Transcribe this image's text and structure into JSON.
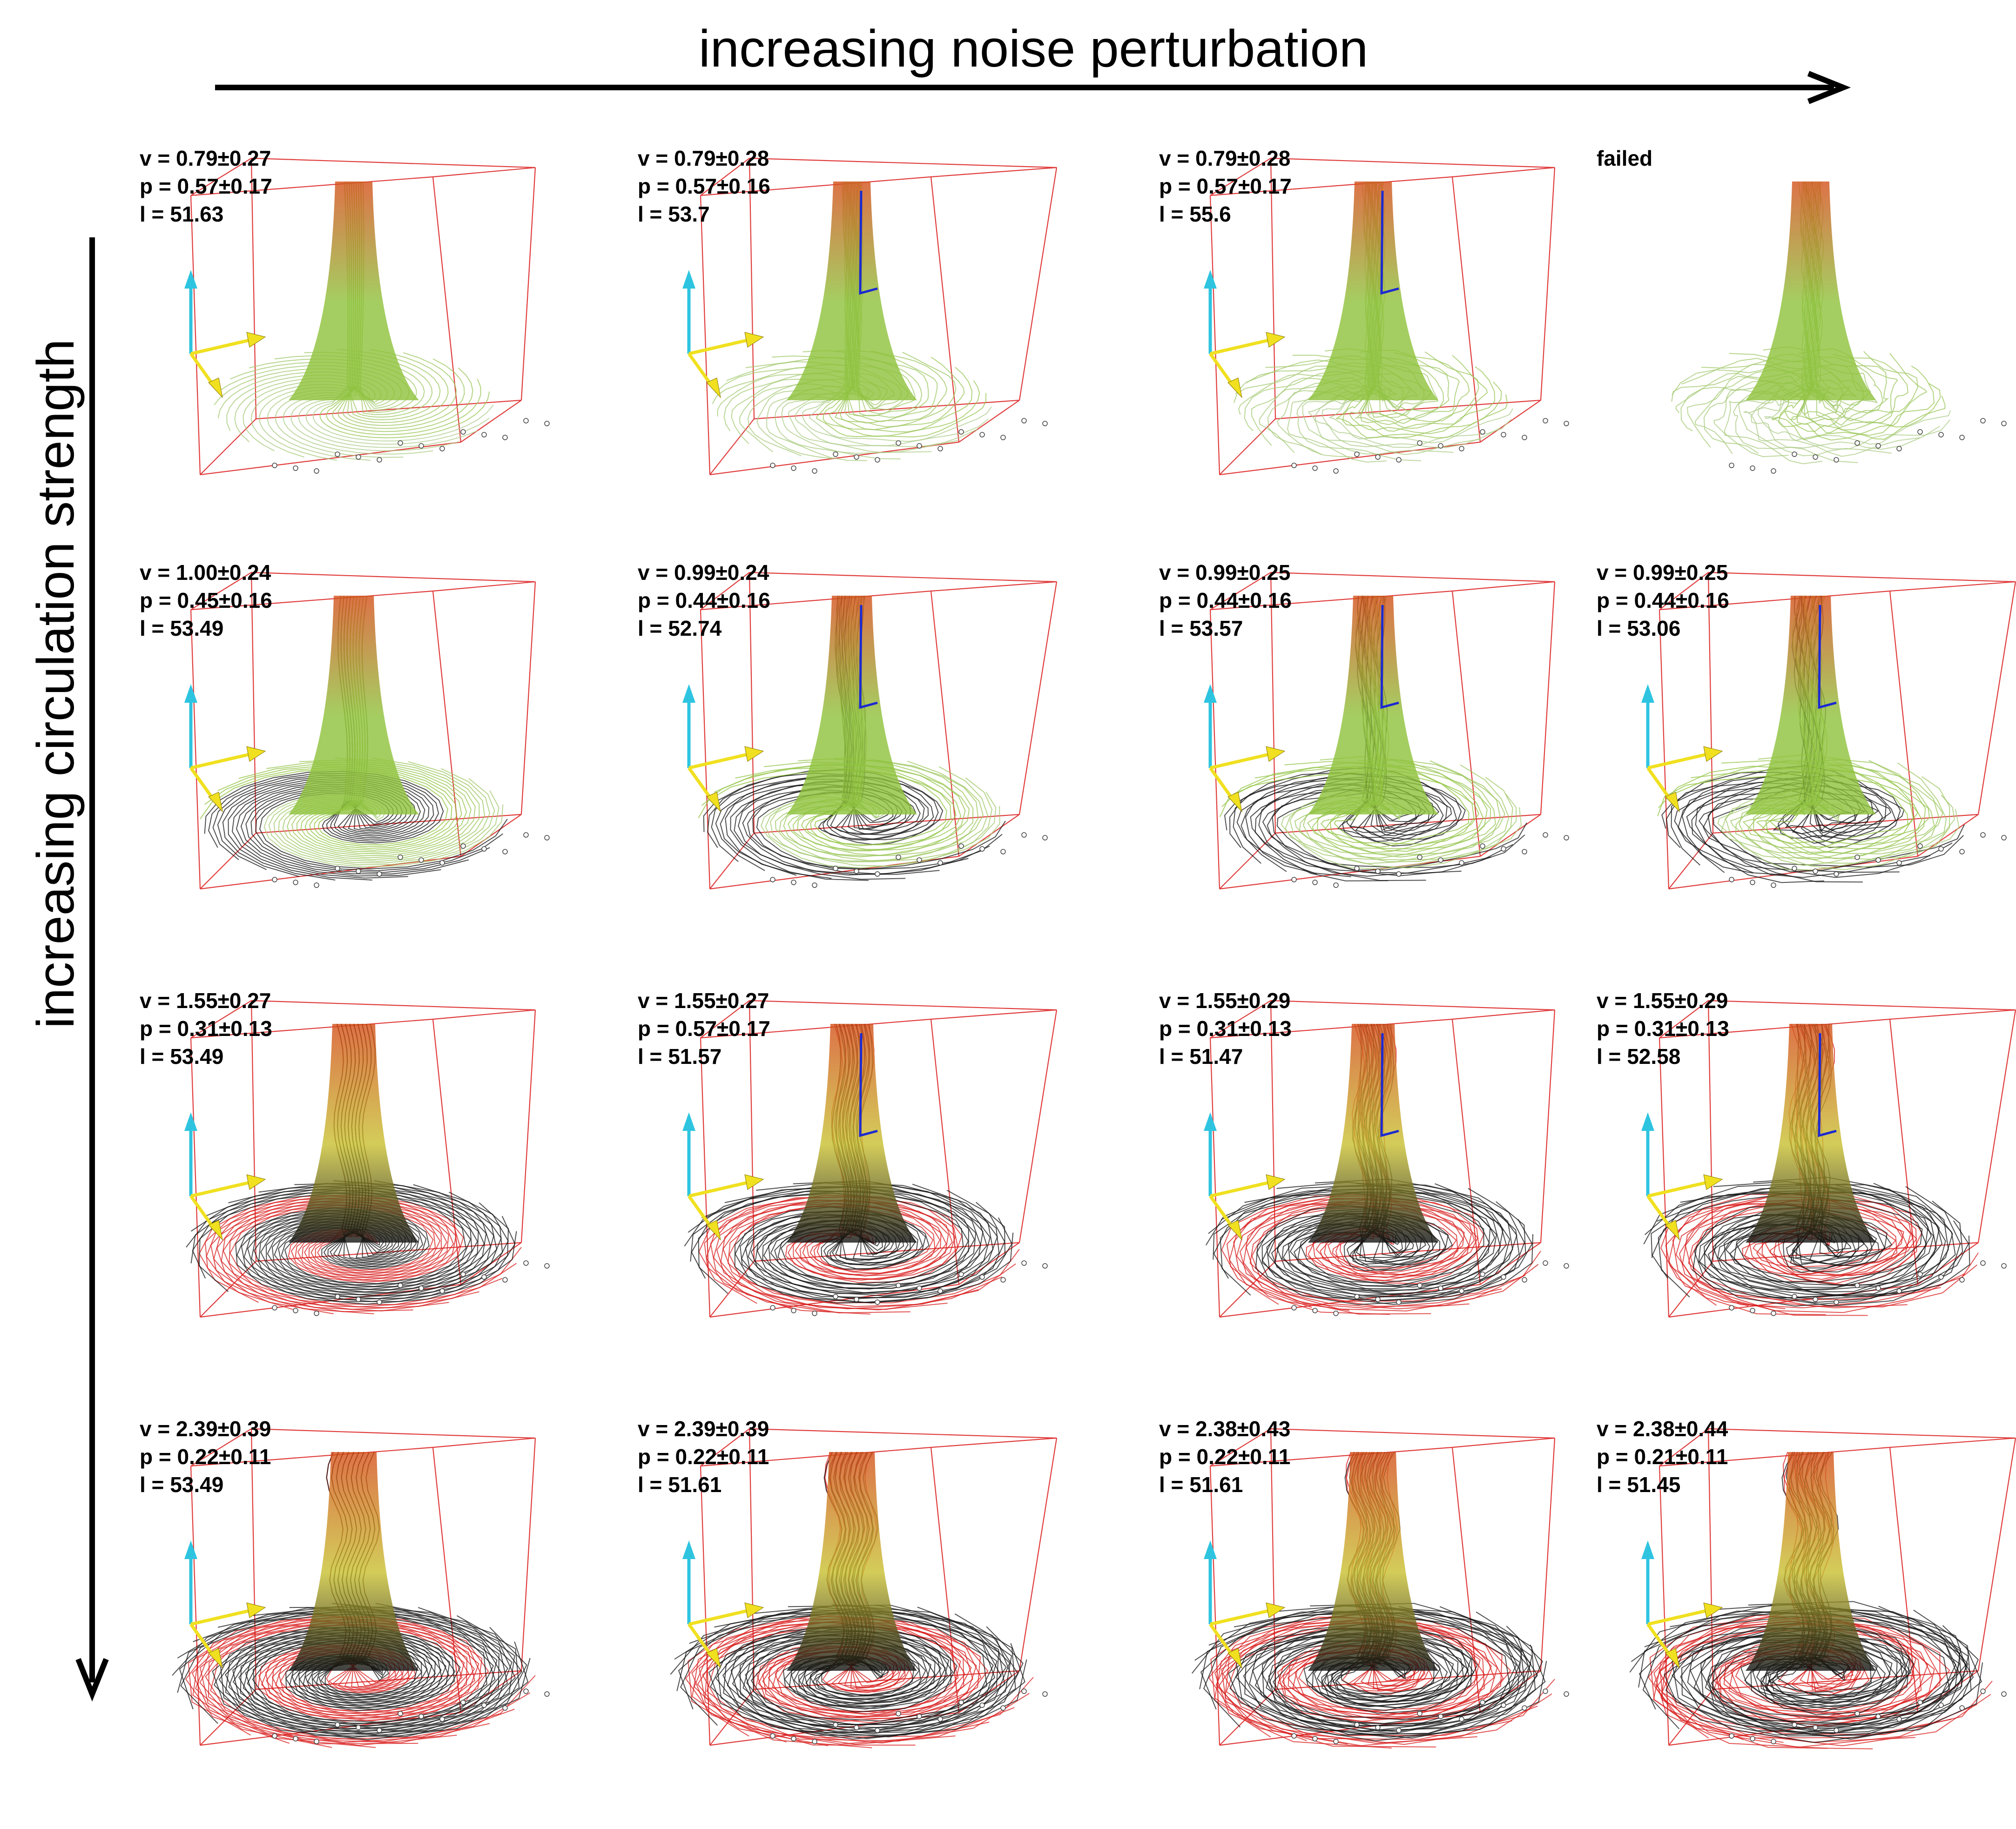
{
  "axes": {
    "horizontal_label": "increasing noise perturbation",
    "vertical_label": "increasing circulation strength"
  },
  "colors": {
    "box": "#e03a3a",
    "axis_vertical": "#2ec4e0",
    "axis_horizontal": "#f0e020",
    "gradient_top": "#d4501a",
    "gradient_mid": "#8ec23a",
    "gradient_low": "#bcd0b0",
    "core_red": "#d81a1a",
    "dark": "#111111",
    "tracker": "#1c2ad0"
  },
  "panels": [
    {
      "row": 0,
      "col": 0,
      "status": "",
      "v": "v = 0.79±0.27",
      "p": "p = 0.57±0.17",
      "l": "l = 51.63",
      "circulation": 0,
      "noise": 0,
      "tracker": false
    },
    {
      "row": 0,
      "col": 1,
      "status": "",
      "v": "v = 0.79±0.28",
      "p": "p = 0.57±0.16",
      "l": "l = 53.7",
      "circulation": 0,
      "noise": 1,
      "tracker": true
    },
    {
      "row": 0,
      "col": 2,
      "status": "",
      "v": "v = 0.79±0.28",
      "p": "p = 0.57±0.17",
      "l": "l = 55.6",
      "circulation": 0,
      "noise": 2,
      "tracker": true
    },
    {
      "row": 0,
      "col": 3,
      "status": "failed",
      "v": "",
      "p": "",
      "l": "",
      "circulation": 0,
      "noise": 3,
      "tracker": false
    },
    {
      "row": 1,
      "col": 0,
      "status": "",
      "v": "v = 1.00±0.24",
      "p": "p = 0.45±0.16",
      "l": "l = 53.49",
      "circulation": 1,
      "noise": 0,
      "tracker": false
    },
    {
      "row": 1,
      "col": 1,
      "status": "",
      "v": "v = 0.99±0.24",
      "p": "p = 0.44±0.16",
      "l": "l = 52.74",
      "circulation": 1,
      "noise": 1,
      "tracker": true
    },
    {
      "row": 1,
      "col": 2,
      "status": "",
      "v": "v = 0.99±0.25",
      "p": "p = 0.44±0.16",
      "l": "l = 53.57",
      "circulation": 1,
      "noise": 2,
      "tracker": true
    },
    {
      "row": 1,
      "col": 3,
      "status": "",
      "v": "v = 0.99±0.25",
      "p": "p = 0.44±0.16",
      "l": "l = 53.06",
      "circulation": 1,
      "noise": 3,
      "tracker": true
    },
    {
      "row": 2,
      "col": 0,
      "status": "",
      "v": "v = 1.55±0.27",
      "p": "p = 0.31±0.13",
      "l": "l = 53.49",
      "circulation": 2,
      "noise": 0,
      "tracker": false
    },
    {
      "row": 2,
      "col": 1,
      "status": "",
      "v": "v = 1.55±0.27",
      "p": "p = 0.57±0.17",
      "l": "l = 51.57",
      "circulation": 2,
      "noise": 1,
      "tracker": true
    },
    {
      "row": 2,
      "col": 2,
      "status": "",
      "v": "v = 1.55±0.29",
      "p": "p = 0.31±0.13",
      "l": "l = 51.47",
      "circulation": 2,
      "noise": 2,
      "tracker": true
    },
    {
      "row": 2,
      "col": 3,
      "status": "",
      "v": "v = 1.55±0.29",
      "p": "p = 0.31±0.13",
      "l": "l = 52.58",
      "circulation": 2,
      "noise": 3,
      "tracker": true
    },
    {
      "row": 3,
      "col": 0,
      "status": "",
      "v": "v = 2.39±0.39",
      "p": "p = 0.22±0.11",
      "l": "l = 53.49",
      "circulation": 3,
      "noise": 0,
      "tracker": false
    },
    {
      "row": 3,
      "col": 1,
      "status": "",
      "v": "v = 2.39±0.39",
      "p": "p = 0.22±0.11",
      "l": "l = 51.61",
      "circulation": 3,
      "noise": 1,
      "tracker": false
    },
    {
      "row": 3,
      "col": 2,
      "status": "",
      "v": "v = 2.38±0.43",
      "p": "p = 0.22±0.11",
      "l": "l = 51.61",
      "circulation": 3,
      "noise": 2,
      "tracker": false
    },
    {
      "row": 3,
      "col": 3,
      "status": "",
      "v": "v = 2.38±0.44",
      "p": "p = 0.21±0.11",
      "l": "l = 51.45",
      "circulation": 3,
      "noise": 3,
      "tracker": false
    }
  ]
}
